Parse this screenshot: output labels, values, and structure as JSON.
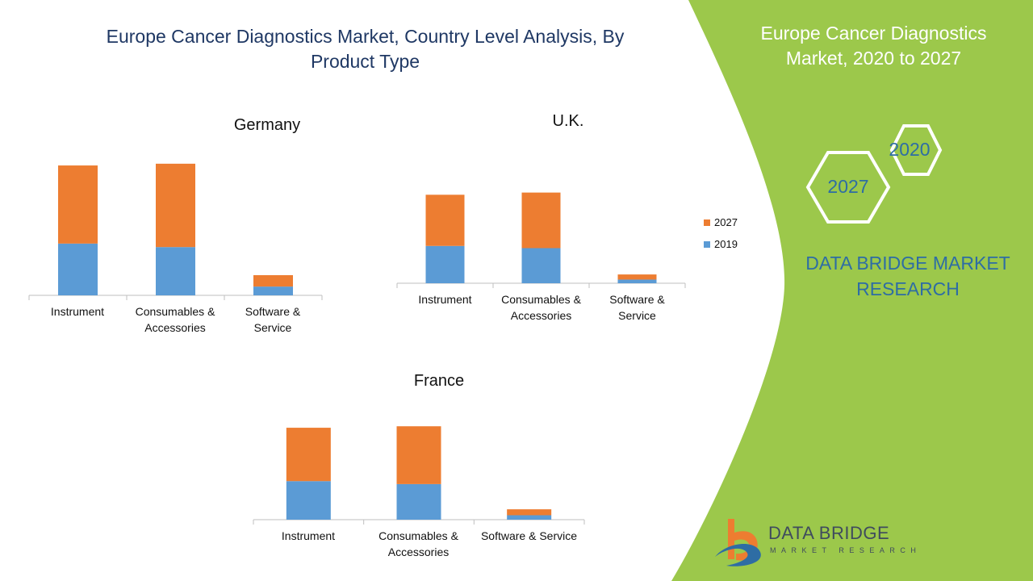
{
  "page": {
    "title": "Europe Cancer Diagnostics Market, Country Level Analysis, By Product Type"
  },
  "colors": {
    "series_2019": "#5b9bd5",
    "series_2027": "#ed7d31",
    "panel_green": "#9cc84b",
    "brand_blue": "#2e6da4"
  },
  "legend": {
    "items": [
      {
        "label": "2027",
        "color": "#ed7d31"
      },
      {
        "label": "2019",
        "color": "#5b9bd5"
      }
    ]
  },
  "chart_data": [
    {
      "type": "bar",
      "stacked": true,
      "title": "Germany",
      "categories": [
        "Instrument",
        "Consumables &\nAccessories",
        "Software &\nService"
      ],
      "series": [
        {
          "name": "2019",
          "values": [
            0.59,
            0.55,
            0.1
          ]
        },
        {
          "name": "2027",
          "values": [
            0.89,
            0.95,
            0.13
          ]
        }
      ],
      "ylim": [
        0,
        1.6
      ],
      "xlabel": "",
      "ylabel": "",
      "grid": false
    },
    {
      "type": "bar",
      "stacked": true,
      "title": "U.K.",
      "categories": [
        "Instrument",
        "Consumables &\nAccessories",
        "Software &\nService"
      ],
      "series": [
        {
          "name": "2019",
          "values": [
            0.51,
            0.48,
            0.05
          ]
        },
        {
          "name": "2027",
          "values": [
            0.7,
            0.76,
            0.07
          ]
        }
      ],
      "ylim": [
        0,
        1.6
      ],
      "xlabel": "",
      "ylabel": "",
      "grid": false
    },
    {
      "type": "bar",
      "stacked": true,
      "title": "France",
      "categories": [
        "Instrument",
        "Consumables &\nAccessories",
        "Software & Service"
      ],
      "series": [
        {
          "name": "2019",
          "values": [
            0.52,
            0.48,
            0.06
          ]
        },
        {
          "name": "2027",
          "values": [
            0.72,
            0.78,
            0.08
          ]
        }
      ],
      "ylim": [
        0,
        1.6
      ],
      "xlabel": "",
      "ylabel": "",
      "grid": false
    }
  ],
  "side_panel": {
    "title": "Europe Cancer Diagnostics Market, 2020 to 2027",
    "hex_2020": "2020",
    "hex_2027": "2027",
    "brand": "DATA BRIDGE MARKET RESEARCH"
  },
  "logo": {
    "word": "DATA BRIDGE",
    "sub": "MARKET RESEARCH"
  }
}
